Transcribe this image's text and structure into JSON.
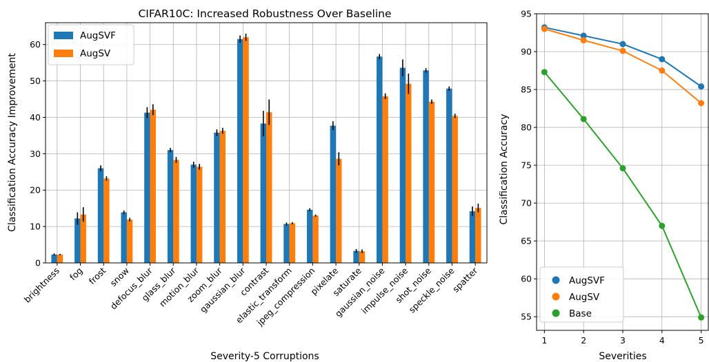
{
  "colors": {
    "augsvf": "#1f77b4",
    "augsv": "#ff7f0e",
    "base": "#2ca02c",
    "grid": "#b0b0b0",
    "err": "#000000"
  },
  "chart_data": [
    {
      "type": "bar",
      "title": "CIFAR10C: Increased Robustness Over Baseline",
      "xlabel": "Severity-5 Corruptions",
      "ylabel": "Classification Accuracy Improvement",
      "ylim": [
        0,
        66
      ],
      "yticks": [
        0,
        10,
        20,
        30,
        40,
        50,
        60
      ],
      "grid": true,
      "legend_position": "top-left",
      "categories": [
        "brightness",
        "fog",
        "frost",
        "snow",
        "defocus_blur",
        "glass_blur",
        "motion_blur",
        "zoom_blur",
        "gaussian_blur",
        "contrast",
        "elastic_transform",
        "jpeg_compression",
        "pixelate",
        "saturate",
        "gaussian_noise",
        "impulse_noise",
        "shot_noise",
        "speckle_noise",
        "spatter"
      ],
      "series": [
        {
          "name": "AugSVF",
          "values": [
            2.3,
            12.2,
            26.0,
            13.9,
            41.3,
            31.0,
            27.0,
            35.8,
            61.5,
            38.3,
            10.7,
            14.6,
            37.7,
            3.3,
            56.7,
            53.6,
            52.9,
            47.9,
            14.2
          ],
          "errors": [
            0.3,
            1.7,
            0.8,
            0.5,
            1.5,
            0.6,
            0.8,
            0.9,
            1.0,
            3.5,
            0.4,
            0.4,
            1.2,
            0.5,
            0.7,
            2.3,
            0.6,
            0.6,
            1.3
          ]
        },
        {
          "name": "AugSV",
          "values": [
            2.3,
            13.3,
            23.2,
            11.9,
            42.1,
            28.3,
            26.4,
            36.3,
            62.0,
            41.4,
            10.9,
            13.0,
            28.6,
            3.2,
            45.8,
            49.2,
            44.3,
            40.4,
            15.1
          ],
          "errors": [
            0.2,
            2.0,
            0.6,
            0.5,
            1.5,
            0.8,
            0.8,
            0.8,
            1.0,
            3.5,
            0.3,
            0.3,
            1.8,
            0.5,
            0.8,
            2.8,
            0.6,
            0.6,
            1.2
          ]
        }
      ]
    },
    {
      "type": "line",
      "xlabel": "Severities",
      "ylabel": "Classification Accuracy",
      "x": [
        1,
        2,
        3,
        4,
        5
      ],
      "xlim": [
        0.8,
        5.2
      ],
      "ylim": [
        53.2,
        95
      ],
      "yticks": [
        55,
        60,
        65,
        70,
        75,
        80,
        85,
        90,
        95
      ],
      "grid": true,
      "legend_position": "bottom-left",
      "series": [
        {
          "name": "AugSVF",
          "values": [
            93.2,
            92.1,
            91.0,
            89.0,
            85.4
          ]
        },
        {
          "name": "AugSV",
          "values": [
            93.0,
            91.5,
            90.1,
            87.5,
            83.2
          ]
        },
        {
          "name": "Base",
          "values": [
            87.3,
            81.1,
            74.6,
            67.0,
            54.9
          ]
        }
      ]
    }
  ]
}
